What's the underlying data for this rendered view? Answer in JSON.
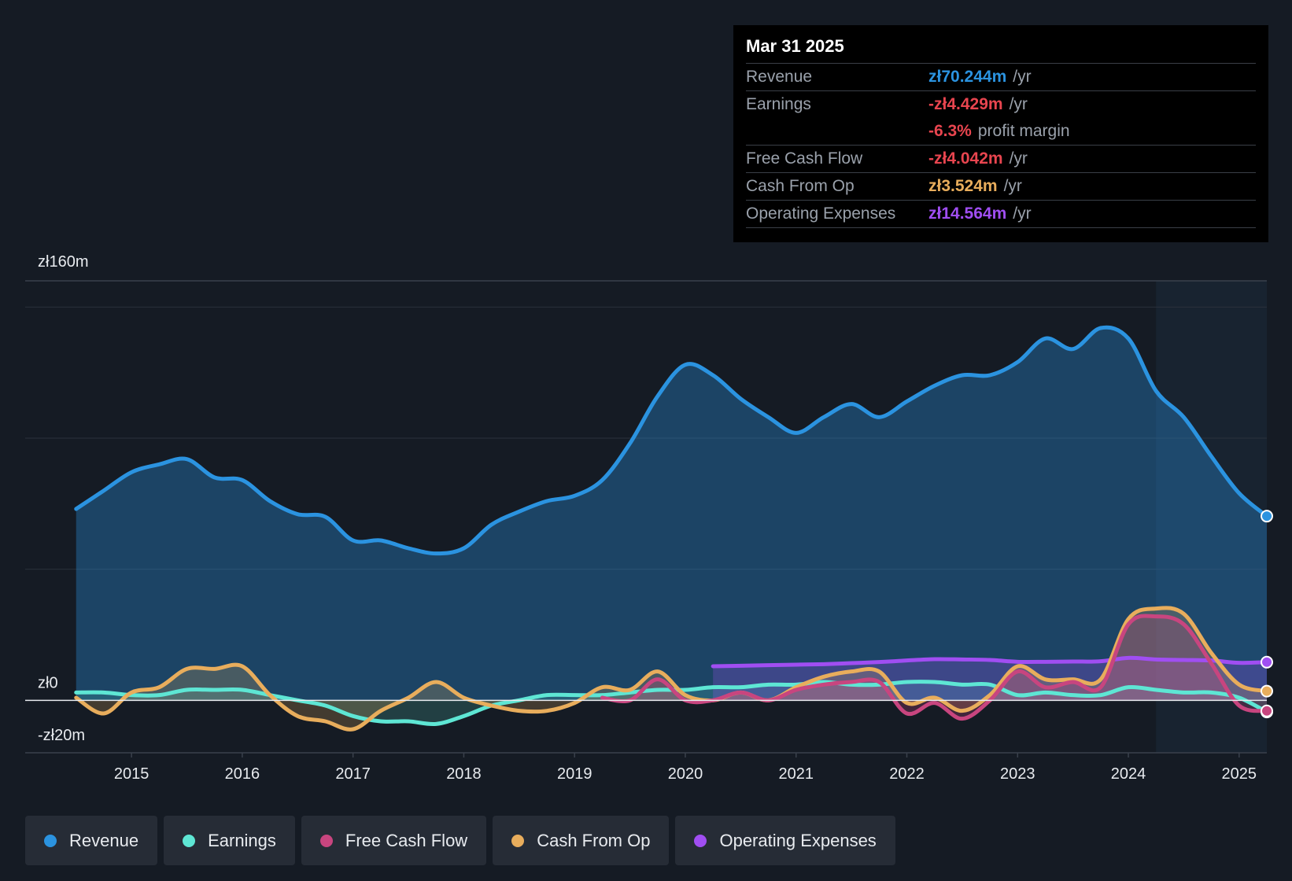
{
  "colors": {
    "revenue": "#2b93e0",
    "earnings": "#5ee6d4",
    "free_cash_flow": "#c8457f",
    "cash_from_op": "#e8ad5c",
    "operating_expenses": "#a04ef2",
    "negative": "#e8454f"
  },
  "tooltip": {
    "date": "Mar 31 2025",
    "rows": [
      {
        "label": "Revenue",
        "value": "zł70.244m",
        "unit": "/yr",
        "color": "#2b93e0"
      },
      {
        "label": "Earnings",
        "value": "-zł4.429m",
        "unit": "/yr",
        "color": "#e8454f"
      },
      {
        "label": "",
        "value": "-6.3%",
        "unit": "profit margin",
        "color": "#e8454f"
      },
      {
        "label": "Free Cash Flow",
        "value": "-zł4.042m",
        "unit": "/yr",
        "color": "#e8454f"
      },
      {
        "label": "Cash From Op",
        "value": "zł3.524m",
        "unit": "/yr",
        "color": "#e8ad5c"
      },
      {
        "label": "Operating Expenses",
        "value": "zł14.564m",
        "unit": "/yr",
        "color": "#a04ef2"
      }
    ]
  },
  "legend": [
    {
      "label": "Revenue",
      "color": "#2b93e0"
    },
    {
      "label": "Earnings",
      "color": "#5ee6d4"
    },
    {
      "label": "Free Cash Flow",
      "color": "#c8457f"
    },
    {
      "label": "Cash From Op",
      "color": "#e8ad5c"
    },
    {
      "label": "Operating Expenses",
      "color": "#a04ef2"
    }
  ],
  "chart_data": {
    "type": "area",
    "title": "",
    "xlabel": "",
    "ylabel": "",
    "ylim": [
      -20,
      160
    ],
    "xlim": [
      2014.04,
      2025.25
    ],
    "y_tick_labels": [
      {
        "value": 160,
        "label": "zł160m"
      },
      {
        "value": 0,
        "label": "zł0"
      },
      {
        "value": -20,
        "label": "-zł20m"
      }
    ],
    "gridlines": [
      150,
      100,
      50
    ],
    "x_ticks": [
      2015,
      2016,
      2017,
      2018,
      2019,
      2020,
      2021,
      2022,
      2023,
      2024,
      2025
    ],
    "x_tick_labels": [
      "2015",
      "2016",
      "2017",
      "2018",
      "2019",
      "2020",
      "2021",
      "2022",
      "2023",
      "2024",
      "2025"
    ],
    "forecast_start": 2024.25,
    "series": [
      {
        "name": "Revenue",
        "key": "revenue",
        "x": [
          2014.5,
          2014.75,
          2015.0,
          2015.25,
          2015.5,
          2015.75,
          2016.0,
          2016.25,
          2016.5,
          2016.75,
          2017.0,
          2017.25,
          2017.5,
          2017.75,
          2018.0,
          2018.25,
          2018.5,
          2018.75,
          2019.0,
          2019.25,
          2019.5,
          2019.75,
          2020.0,
          2020.25,
          2020.5,
          2020.75,
          2021.0,
          2021.25,
          2021.5,
          2021.75,
          2022.0,
          2022.25,
          2022.5,
          2022.75,
          2023.0,
          2023.25,
          2023.5,
          2023.75,
          2024.0,
          2024.25,
          2024.5,
          2024.75,
          2025.0,
          2025.25
        ],
        "values": [
          73,
          80,
          87,
          90,
          92,
          85,
          84,
          76,
          71,
          70,
          61,
          61,
          58,
          56,
          58,
          67,
          72,
          76,
          78,
          84,
          98,
          116,
          128,
          124,
          115,
          108,
          102,
          108,
          113,
          108,
          114,
          120,
          124,
          124,
          129,
          138,
          134,
          142,
          138,
          118,
          108,
          93,
          79,
          70.244
        ]
      },
      {
        "name": "Earnings",
        "key": "earnings",
        "x": [
          2014.5,
          2014.75,
          2015.0,
          2015.25,
          2015.5,
          2015.75,
          2016.0,
          2016.25,
          2016.5,
          2016.75,
          2017.0,
          2017.25,
          2017.5,
          2017.75,
          2018.0,
          2018.25,
          2018.5,
          2018.75,
          2019.0,
          2019.25,
          2019.5,
          2019.75,
          2020.0,
          2020.25,
          2020.5,
          2020.75,
          2021.0,
          2021.25,
          2021.5,
          2021.75,
          2022.0,
          2022.25,
          2022.5,
          2022.75,
          2023.0,
          2023.25,
          2023.5,
          2023.75,
          2024.0,
          2024.25,
          2024.5,
          2024.75,
          2025.0,
          2025.25
        ],
        "values": [
          3,
          3,
          2,
          2,
          4,
          4,
          4,
          2,
          0,
          -2,
          -6,
          -8,
          -8,
          -9,
          -6,
          -2,
          0,
          2,
          2,
          2,
          3,
          4,
          4,
          5,
          5,
          6,
          6,
          7,
          6,
          6,
          7,
          7,
          6,
          6,
          2,
          3,
          2,
          2,
          5,
          4,
          3,
          3,
          1,
          -4.429
        ]
      },
      {
        "name": "Free Cash Flow",
        "key": "free_cash_flow",
        "x": [
          2019.25,
          2019.5,
          2019.75,
          2020.0,
          2020.25,
          2020.5,
          2020.75,
          2021.0,
          2021.25,
          2021.5,
          2021.75,
          2022.0,
          2022.25,
          2022.5,
          2022.75,
          2023.0,
          2023.25,
          2023.5,
          2023.75,
          2024.0,
          2024.25,
          2024.5,
          2024.75,
          2025.0,
          2025.25
        ],
        "values": [
          1,
          0,
          8,
          0,
          0,
          3,
          0,
          4,
          6,
          7,
          7,
          -5,
          -1,
          -7,
          0,
          11,
          5,
          7,
          5,
          29,
          32,
          29,
          14,
          -2,
          -4.042
        ]
      },
      {
        "name": "Cash From Op",
        "key": "cash_from_op",
        "x": [
          2014.5,
          2014.75,
          2015.0,
          2015.25,
          2015.5,
          2015.75,
          2016.0,
          2016.25,
          2016.5,
          2016.75,
          2017.0,
          2017.25,
          2017.5,
          2017.75,
          2018.0,
          2018.25,
          2018.5,
          2018.75,
          2019.0,
          2019.25,
          2019.5,
          2019.75,
          2020.0,
          2020.25,
          2020.5,
          2020.75,
          2021.0,
          2021.25,
          2021.5,
          2021.75,
          2022.0,
          2022.25,
          2022.5,
          2022.75,
          2023.0,
          2023.25,
          2023.5,
          2023.75,
          2024.0,
          2024.25,
          2024.5,
          2024.75,
          2025.0,
          2025.25
        ],
        "values": [
          1,
          -5,
          3,
          5,
          12,
          12,
          13,
          2,
          -6,
          -8,
          -11,
          -4,
          1,
          7,
          1,
          -2,
          -4,
          -4,
          -1,
          5,
          4,
          11,
          2,
          0,
          3,
          0,
          5,
          9,
          11,
          11,
          -1,
          1,
          -4,
          2,
          13,
          8,
          8,
          8,
          31,
          35,
          33,
          18,
          6,
          3.524
        ]
      },
      {
        "name": "Operating Expenses",
        "key": "operating_expenses",
        "x": [
          2020.25,
          2020.5,
          2020.75,
          2021.0,
          2021.25,
          2021.5,
          2021.75,
          2022.0,
          2022.25,
          2022.5,
          2022.75,
          2023.0,
          2023.25,
          2023.5,
          2023.75,
          2024.0,
          2024.25,
          2024.5,
          2024.75,
          2025.0,
          2025.25
        ],
        "values": [
          13,
          13.2,
          13.4,
          13.6,
          13.8,
          14.2,
          14.6,
          15.2,
          15.7,
          15.6,
          15.4,
          14.7,
          14.7,
          14.8,
          14.9,
          16.2,
          15.6,
          15.4,
          15.2,
          14.3,
          14.564
        ]
      }
    ]
  }
}
